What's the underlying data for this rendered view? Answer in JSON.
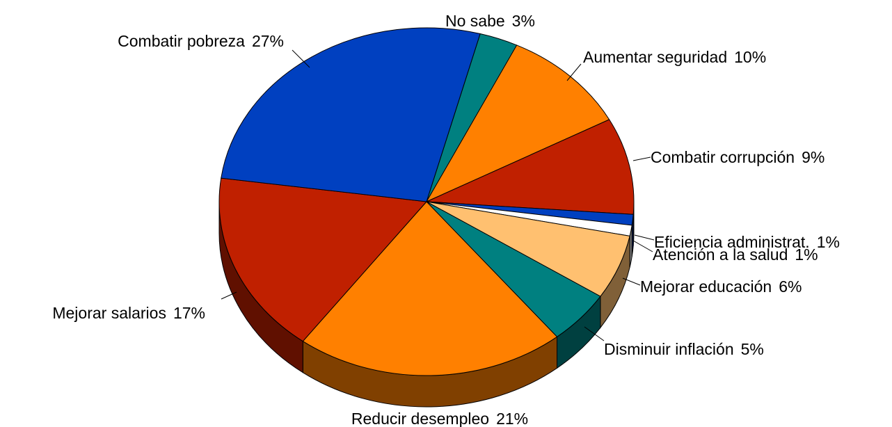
{
  "chart_data": {
    "type": "pie3d",
    "categories": [
      "No sabe",
      "Aumentar seguridad",
      "Combatir corrupción",
      "Eficiencia administrat.",
      "Atención a la salud",
      "Mejorar educación",
      "Disminuir inflación",
      "Reducir desempleo",
      "Mejorar salarios",
      "Combatir pobreza"
    ],
    "values": [
      3,
      10,
      9,
      1,
      1,
      6,
      5,
      21,
      17,
      27
    ],
    "value_labels": [
      "3%",
      "10%",
      "9%",
      "1%",
      "1%",
      "6%",
      "5%",
      "21%",
      "17%",
      "27%"
    ],
    "colors": [
      "#008080",
      "#ff8000",
      "#c02000",
      "#0040c0",
      "#ffffff",
      "#ffc070",
      "#008080",
      "#ff8000",
      "#c02000",
      "#0040c0"
    ]
  }
}
